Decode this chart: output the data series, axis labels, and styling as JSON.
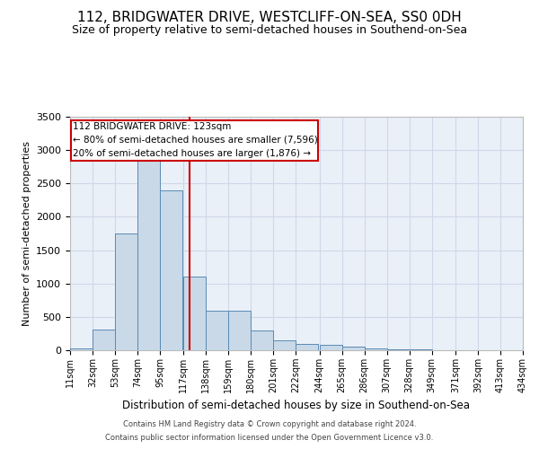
{
  "title": "112, BRIDGWATER DRIVE, WESTCLIFF-ON-SEA, SS0 0DH",
  "subtitle": "Size of property relative to semi-detached houses in Southend-on-Sea",
  "xlabel": "Distribution of semi-detached houses by size in Southend-on-Sea",
  "ylabel": "Number of semi-detached properties",
  "footer1": "Contains HM Land Registry data © Crown copyright and database right 2024.",
  "footer2": "Contains public sector information licensed under the Open Government Licence v3.0.",
  "property_line": 123,
  "property_label": "112 BRIDGWATER DRIVE: 123sqm",
  "smaller_pct": "80% of semi-detached houses are smaller (7,596)",
  "larger_pct": "20% of semi-detached houses are larger (1,876)",
  "bin_edges": [
    11,
    32,
    53,
    74,
    95,
    117,
    138,
    159,
    180,
    201,
    222,
    244,
    265,
    286,
    307,
    328,
    349,
    371,
    392,
    413,
    434
  ],
  "bar_heights": [
    30,
    310,
    1750,
    2950,
    2400,
    1100,
    590,
    590,
    300,
    150,
    100,
    80,
    60,
    30,
    15,
    10,
    5,
    3,
    2,
    1
  ],
  "bar_color": "#c9d9e8",
  "bar_edge_color": "#5a8ab5",
  "vline_color": "#cc0000",
  "annotation_box_color": "#cc0000",
  "grid_color": "#d0d8e8",
  "bg_color": "#eaf0f8",
  "ylim": [
    0,
    3500
  ],
  "yticks": [
    0,
    500,
    1000,
    1500,
    2000,
    2500,
    3000,
    3500
  ],
  "title_fontsize": 11,
  "subtitle_fontsize": 9,
  "ylabel_fontsize": 8,
  "xlabel_fontsize": 8.5,
  "tick_fontsize": 7,
  "footer_fontsize": 6,
  "annot_fontsize": 7.5
}
